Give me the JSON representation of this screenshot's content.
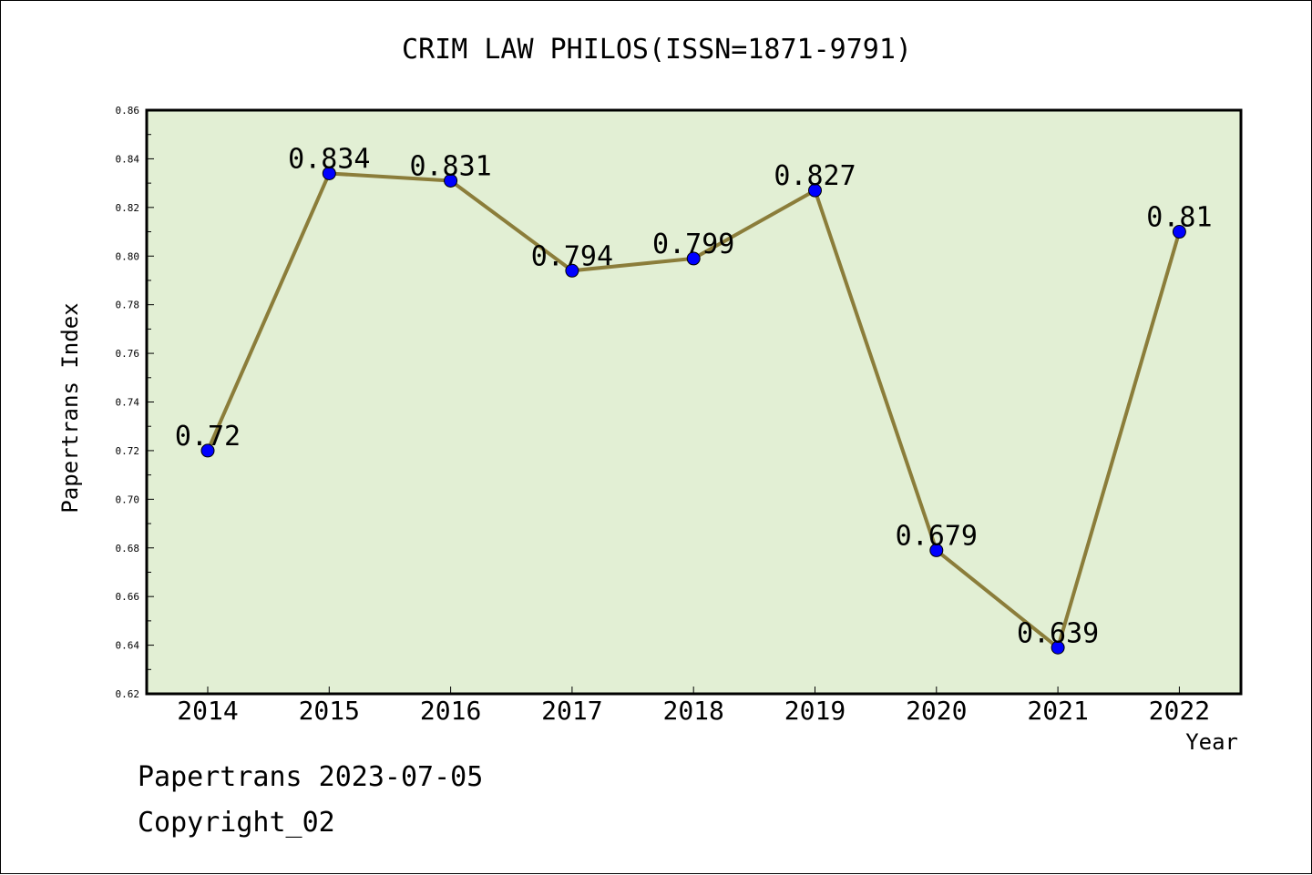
{
  "chart_data": {
    "type": "line",
    "title": "CRIM LAW PHILOS(ISSN=1871-9791)",
    "xlabel": "Year",
    "ylabel": "Papertrans Index",
    "categories": [
      "2014",
      "2015",
      "2016",
      "2017",
      "2018",
      "2019",
      "2020",
      "2021",
      "2022"
    ],
    "series": [
      {
        "values": [
          0.72,
          0.834,
          0.831,
          0.794,
          0.799,
          0.827,
          0.679,
          0.639,
          0.81
        ],
        "data_labels": [
          "0.72",
          "0.834",
          "0.831",
          "0.794",
          "0.799",
          "0.827",
          "0.679",
          "0.639",
          "0.81"
        ]
      }
    ],
    "ylim": [
      0.62,
      0.86
    ],
    "yticks": [
      "0.62",
      "0.64",
      "0.66",
      "0.68",
      "0.70",
      "0.72",
      "0.74",
      "0.76",
      "0.78",
      "0.80",
      "0.82",
      "0.84",
      "0.86"
    ],
    "grid": false,
    "colors": {
      "plot_background": "#e2efd4",
      "line": "#8b7d3a",
      "marker": "#0000ff"
    }
  },
  "footer": {
    "date_text": "Papertrans 2023-07-05",
    "copyright_text": "Copyright_02"
  }
}
